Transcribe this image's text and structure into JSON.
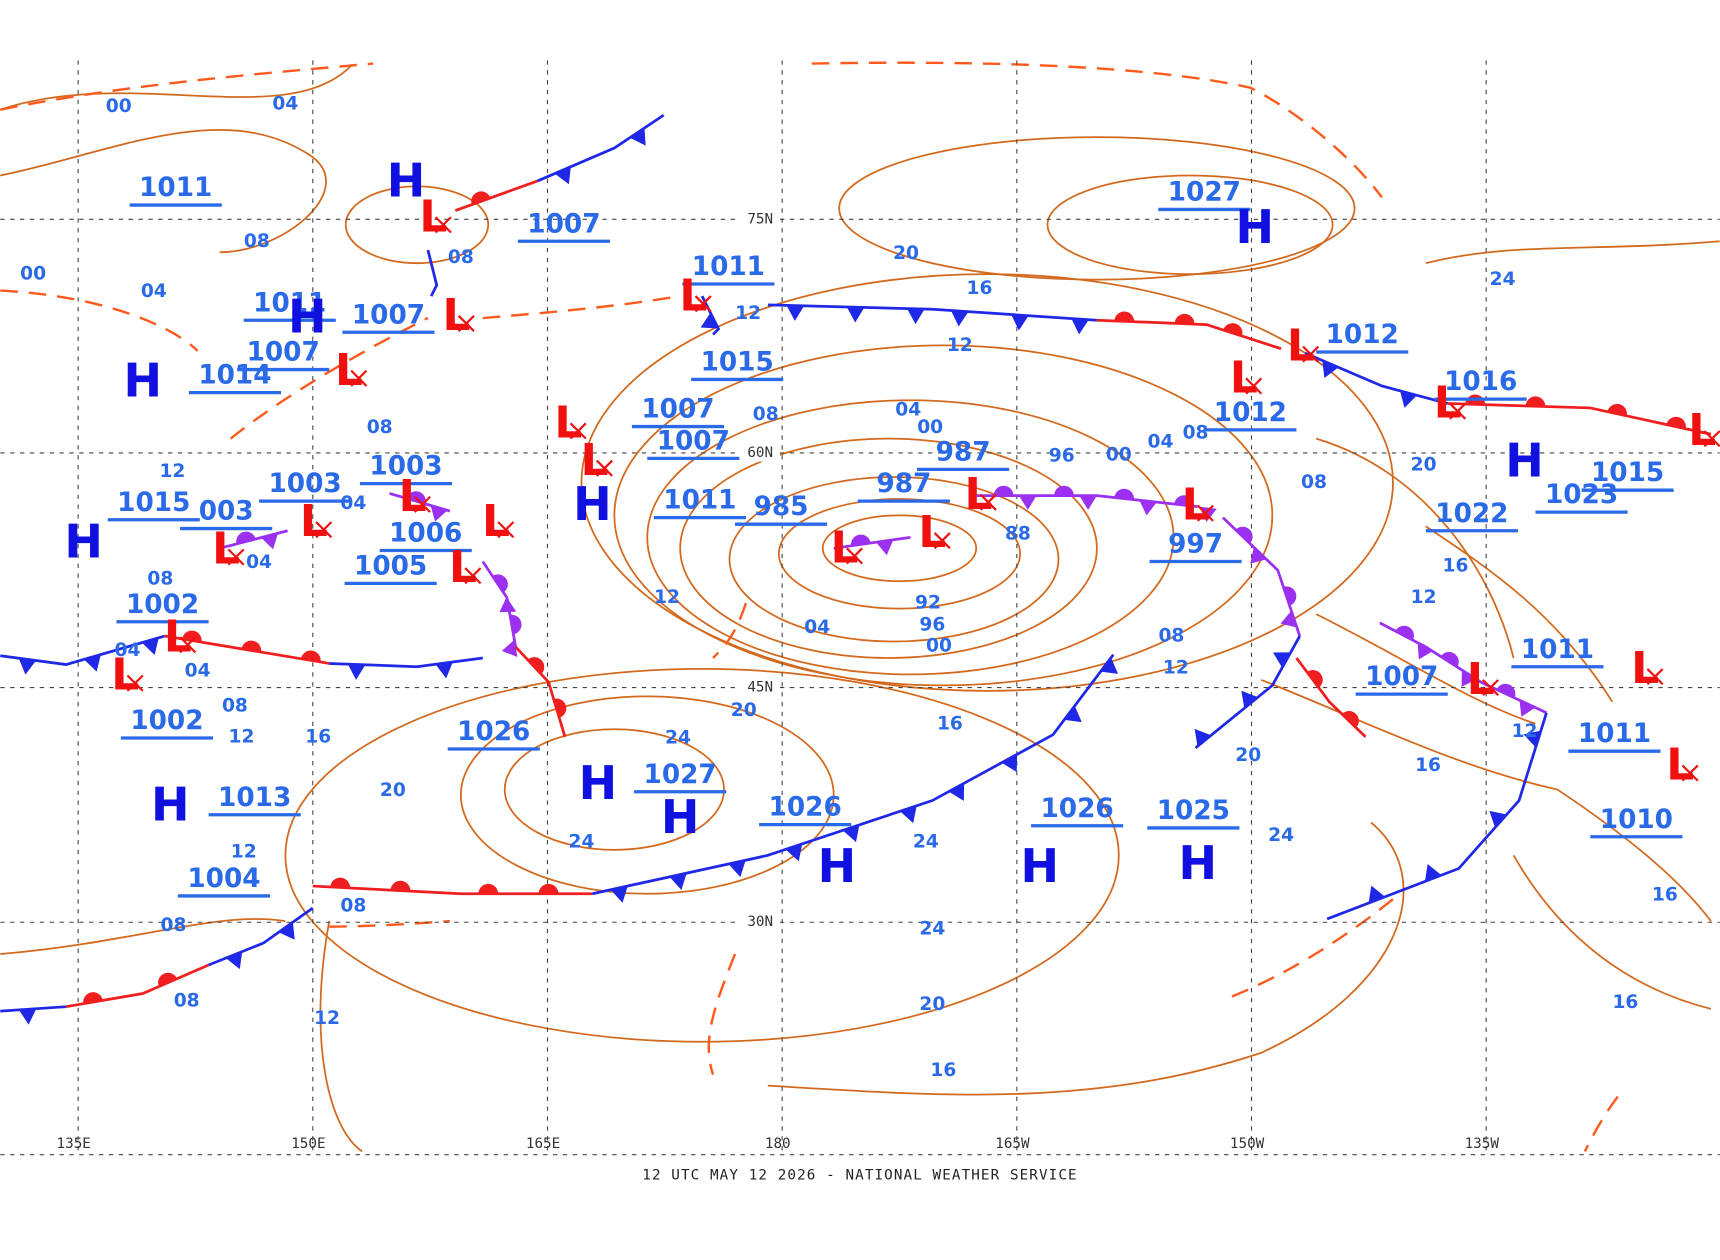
{
  "map": {
    "footer": "12 UTC MAY 12 2026 - NATIONAL WEATHER SERVICE",
    "longitude_labels": [
      "135E",
      "150E",
      "165E",
      "180",
      "165W",
      "150W",
      "135W"
    ],
    "latitude_labels": [
      "75N",
      "60N",
      "45N",
      "30N"
    ],
    "pressure_values": [
      "1011",
      "1007",
      "1027",
      "1011",
      "1007",
      "1011",
      "1007",
      "1014",
      "1015",
      "1007",
      "1007",
      "1012",
      "1016",
      "1012",
      "987",
      "987",
      "1003",
      "1003",
      "1015",
      "003",
      "1011",
      "985",
      "1006",
      "1005",
      "997",
      "1022",
      "1023",
      "1015",
      "1002",
      "1011",
      "1007",
      "1002",
      "1026",
      "1027",
      "1013",
      "1026",
      "1026",
      "1025",
      "1011",
      "1010",
      "1004"
    ],
    "isobar_labels": [
      "00",
      "04",
      "08",
      "00",
      "04",
      "08",
      "20",
      "16",
      "12",
      "12",
      "24",
      "08",
      "04",
      "00",
      "08",
      "12",
      "96",
      "00",
      "04",
      "08",
      "08",
      "20",
      "04",
      "04",
      "88",
      "92",
      "96",
      "00",
      "04",
      "12",
      "08",
      "16",
      "12",
      "04",
      "04",
      "08",
      "12",
      "08",
      "12",
      "16",
      "20",
      "16",
      "20",
      "12",
      "16",
      "20",
      "24",
      "24",
      "24",
      "24",
      "12",
      "08",
      "08",
      "24",
      "08",
      "12",
      "20",
      "16",
      "16",
      "16"
    ],
    "centers": [
      "H",
      "H",
      "H",
      "H",
      "H",
      "H",
      "H",
      "H",
      "H",
      "H",
      "H",
      "H",
      "H",
      "L",
      "L",
      "L",
      "L",
      "L",
      "L",
      "L",
      "L",
      "L",
      "L",
      "L",
      "L",
      "L",
      "L",
      "L",
      "L",
      "L",
      "L",
      "L",
      "L",
      "L",
      "L",
      "L",
      "L"
    ]
  }
}
